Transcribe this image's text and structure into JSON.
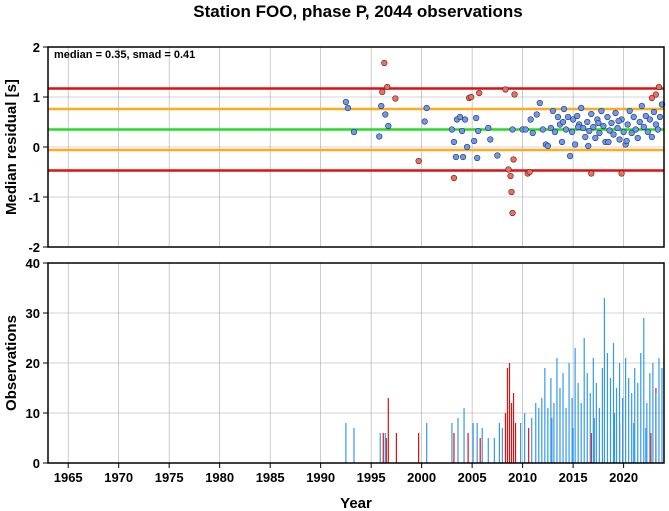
{
  "chart_data": [
    {
      "type": "scatter",
      "title": "Station FOO, phase P, 2044 observations",
      "ylabel": "Median residual [s]",
      "annotation": "median = 0.35, smad = 0.41",
      "xlim": [
        1963,
        2024
      ],
      "ylim": [
        -2,
        2
      ],
      "yticks": [
        "-2",
        "-1",
        "0",
        "1",
        "2"
      ],
      "grid": true,
      "reference_lines": [
        {
          "y": 0.35,
          "color": "#22dd22"
        },
        {
          "y": 0.76,
          "color": "#ffaa22"
        },
        {
          "y": -0.06,
          "color": "#ffaa22"
        },
        {
          "y": 1.17,
          "color": "#dd1111"
        },
        {
          "y": -0.47,
          "color": "#dd1111"
        }
      ],
      "series": [
        {
          "color": "#6699ff",
          "points": [
            [
              1992.5,
              0.9
            ],
            [
              1992.7,
              0.78
            ],
            [
              1993.3,
              0.3
            ],
            [
              1995.8,
              0.21
            ],
            [
              1996.0,
              0.82
            ],
            [
              1996.4,
              0.65
            ],
            [
              1996.7,
              0.42
            ],
            [
              2000.5,
              0.78
            ],
            [
              2000.3,
              0.51
            ],
            [
              2003.0,
              0.35
            ],
            [
              2003.2,
              0.1
            ],
            [
              2003.5,
              0.55
            ],
            [
              2003.8,
              0.6
            ],
            [
              2004.0,
              0.32
            ],
            [
              2004.3,
              0.55
            ],
            [
              2004.1,
              -0.2
            ],
            [
              2003.4,
              -0.2
            ],
            [
              2004.5,
              0.0
            ],
            [
              2005.2,
              0.12
            ],
            [
              2005.4,
              0.58
            ],
            [
              2005.6,
              0.32
            ],
            [
              2005.5,
              -0.22
            ],
            [
              2006.6,
              0.38
            ],
            [
              2006.8,
              0.15
            ],
            [
              2007.5,
              -0.17
            ],
            [
              2009.0,
              0.35
            ],
            [
              2010.0,
              0.35
            ],
            [
              2010.3,
              0.35
            ],
            [
              2010.8,
              0.55
            ],
            [
              2011.0,
              0.28
            ],
            [
              2011.4,
              0.65
            ],
            [
              2011.7,
              0.88
            ],
            [
              2012.0,
              0.35
            ],
            [
              2012.3,
              0.05
            ],
            [
              2012.5,
              0.02
            ],
            [
              2012.8,
              0.38
            ],
            [
              2013.0,
              0.72
            ],
            [
              2013.2,
              0.3
            ],
            [
              2013.5,
              0.6
            ],
            [
              2013.7,
              0.45
            ],
            [
              2013.9,
              0.1
            ],
            [
              2014.1,
              0.76
            ],
            [
              2014.3,
              0.35
            ],
            [
              2014.5,
              0.6
            ],
            [
              2014.7,
              -0.18
            ],
            [
              2014.9,
              0.3
            ],
            [
              2015.0,
              0.55
            ],
            [
              2015.2,
              0.05
            ],
            [
              2015.4,
              0.62
            ],
            [
              2015.6,
              0.45
            ],
            [
              2015.8,
              0.78
            ],
            [
              2016.0,
              0.38
            ],
            [
              2016.2,
              0.2
            ],
            [
              2016.4,
              0.5
            ],
            [
              2016.6,
              0.32
            ],
            [
              2016.8,
              0.66
            ],
            [
              2017.0,
              0.4
            ],
            [
              2017.2,
              0.18
            ],
            [
              2017.4,
              0.55
            ],
            [
              2017.6,
              0.28
            ],
            [
              2017.8,
              0.72
            ],
            [
              2018.0,
              0.42
            ],
            [
              2018.2,
              0.1
            ],
            [
              2018.4,
              0.6
            ],
            [
              2018.6,
              0.33
            ],
            [
              2018.8,
              0.48
            ],
            [
              2019.0,
              0.25
            ],
            [
              2019.2,
              0.68
            ],
            [
              2019.4,
              0.38
            ],
            [
              2019.6,
              0.15
            ],
            [
              2019.8,
              0.55
            ],
            [
              2020.0,
              0.3
            ],
            [
              2020.2,
              0.05
            ],
            [
              2020.4,
              0.45
            ],
            [
              2020.6,
              0.72
            ],
            [
              2020.8,
              0.28
            ],
            [
              2021.0,
              0.6
            ],
            [
              2021.2,
              0.35
            ],
            [
              2021.4,
              0.18
            ],
            [
              2021.6,
              0.5
            ],
            [
              2021.8,
              0.82
            ],
            [
              2022.0,
              0.4
            ],
            [
              2022.2,
              0.62
            ],
            [
              2022.4,
              0.3
            ],
            [
              2022.6,
              0.55
            ],
            [
              2022.8,
              0.2
            ],
            [
              2023.0,
              0.7
            ],
            [
              2023.2,
              0.45
            ],
            [
              2023.4,
              0.35
            ],
            [
              2023.6,
              0.6
            ],
            [
              2023.8,
              0.85
            ],
            [
              2016.5,
              0.02
            ],
            [
              2018.5,
              0.1
            ],
            [
              2020.3,
              0.12
            ],
            [
              2015.5,
              0.4
            ],
            [
              2014.0,
              0.5
            ],
            [
              2017.5,
              0.48
            ],
            [
              2019.5,
              0.52
            ]
          ]
        },
        {
          "color": "#ff6655",
          "points": [
            [
              1996.1,
              1.1
            ],
            [
              1996.3,
              1.68
            ],
            [
              1996.6,
              1.2
            ],
            [
              1997.4,
              0.97
            ],
            [
              1999.7,
              -0.28
            ],
            [
              2003.2,
              -0.62
            ],
            [
              2004.7,
              0.98
            ],
            [
              2004.9,
              1.0
            ],
            [
              2005.7,
              1.08
            ],
            [
              2008.3,
              1.15
            ],
            [
              2008.6,
              -0.45
            ],
            [
              2008.8,
              -0.58
            ],
            [
              2008.9,
              -0.9
            ],
            [
              2009.0,
              -1.32
            ],
            [
              2009.1,
              -0.25
            ],
            [
              2009.2,
              1.05
            ],
            [
              2010.5,
              -0.53
            ],
            [
              2010.7,
              -0.5
            ],
            [
              2016.8,
              -0.53
            ],
            [
              2019.8,
              -0.53
            ],
            [
              2022.8,
              0.98
            ],
            [
              2023.2,
              1.05
            ],
            [
              2023.5,
              1.2
            ]
          ]
        }
      ]
    },
    {
      "type": "bar",
      "xlabel": "Year",
      "ylabel": "Observations",
      "xlim": [
        1963,
        2024
      ],
      "ylim": [
        0,
        40
      ],
      "xticks": [
        "1965",
        "1970",
        "1975",
        "1980",
        "1985",
        "1990",
        "1995",
        "2000",
        "2005",
        "2010",
        "2015",
        "2020"
      ],
      "yticks": [
        "0",
        "10",
        "20",
        "30",
        "40"
      ],
      "grid": true,
      "series": [
        {
          "color": "#dd1111",
          "points": [
            [
              1996.2,
              6
            ],
            [
              1996.5,
              5
            ],
            [
              1996.7,
              13
            ],
            [
              1997.5,
              6
            ],
            [
              1999.7,
              6
            ],
            [
              2003.2,
              6
            ],
            [
              2004.6,
              6
            ],
            [
              2005.8,
              5
            ],
            [
              2008.3,
              10
            ],
            [
              2008.5,
              19
            ],
            [
              2008.7,
              20
            ],
            [
              2008.9,
              12
            ],
            [
              2009.1,
              14
            ],
            [
              2009.3,
              8
            ],
            [
              2010.6,
              7
            ],
            [
              2016.8,
              6
            ],
            [
              2019.6,
              8
            ],
            [
              2022.7,
              6
            ],
            [
              2023.2,
              15
            ]
          ]
        },
        {
          "color": "#3399ee",
          "points": [
            [
              1992.5,
              8
            ],
            [
              1993.3,
              7
            ],
            [
              1995.9,
              6
            ],
            [
              1996.4,
              6
            ],
            [
              2000.5,
              8
            ],
            [
              2003.0,
              8
            ],
            [
              2003.6,
              9
            ],
            [
              2004.2,
              11
            ],
            [
              2005.1,
              8
            ],
            [
              2005.5,
              8
            ],
            [
              2006.0,
              7
            ],
            [
              2006.6,
              5
            ],
            [
              2007.2,
              5
            ],
            [
              2007.7,
              8
            ],
            [
              2008.0,
              7
            ],
            [
              2009.8,
              8
            ],
            [
              2010.2,
              10
            ],
            [
              2010.9,
              9
            ],
            [
              2011.3,
              12
            ],
            [
              2011.6,
              11
            ],
            [
              2011.9,
              13
            ],
            [
              2012.2,
              19
            ],
            [
              2012.5,
              11
            ],
            [
              2012.8,
              17
            ],
            [
              2013.1,
              12
            ],
            [
              2013.4,
              21
            ],
            [
              2013.7,
              15
            ],
            [
              2014.0,
              18
            ],
            [
              2014.3,
              11
            ],
            [
              2014.6,
              20
            ],
            [
              2014.9,
              13
            ],
            [
              2015.2,
              23
            ],
            [
              2015.5,
              16
            ],
            [
              2015.8,
              12
            ],
            [
              2016.1,
              25
            ],
            [
              2016.4,
              18
            ],
            [
              2016.7,
              14
            ],
            [
              2017.0,
              21
            ],
            [
              2017.3,
              16
            ],
            [
              2017.6,
              11
            ],
            [
              2017.9,
              19
            ],
            [
              2018.1,
              33
            ],
            [
              2018.4,
              22
            ],
            [
              2018.7,
              17
            ],
            [
              2019.0,
              24
            ],
            [
              2019.3,
              15
            ],
            [
              2019.6,
              20
            ],
            [
              2019.9,
              13
            ],
            [
              2020.2,
              21
            ],
            [
              2020.5,
              17
            ],
            [
              2020.8,
              14
            ],
            [
              2021.1,
              19
            ],
            [
              2021.4,
              16
            ],
            [
              2021.7,
              22
            ],
            [
              2022.0,
              29
            ],
            [
              2022.3,
              12
            ],
            [
              2022.6,
              18
            ],
            [
              2022.9,
              20
            ],
            [
              2023.2,
              14
            ],
            [
              2023.5,
              21
            ],
            [
              2023.8,
              19
            ],
            [
              2012.9,
              9
            ],
            [
              2015.0,
              7
            ],
            [
              2017.1,
              9
            ],
            [
              2019.1,
              10
            ],
            [
              2021.0,
              8
            ],
            [
              2022.2,
              7
            ]
          ]
        }
      ]
    }
  ]
}
